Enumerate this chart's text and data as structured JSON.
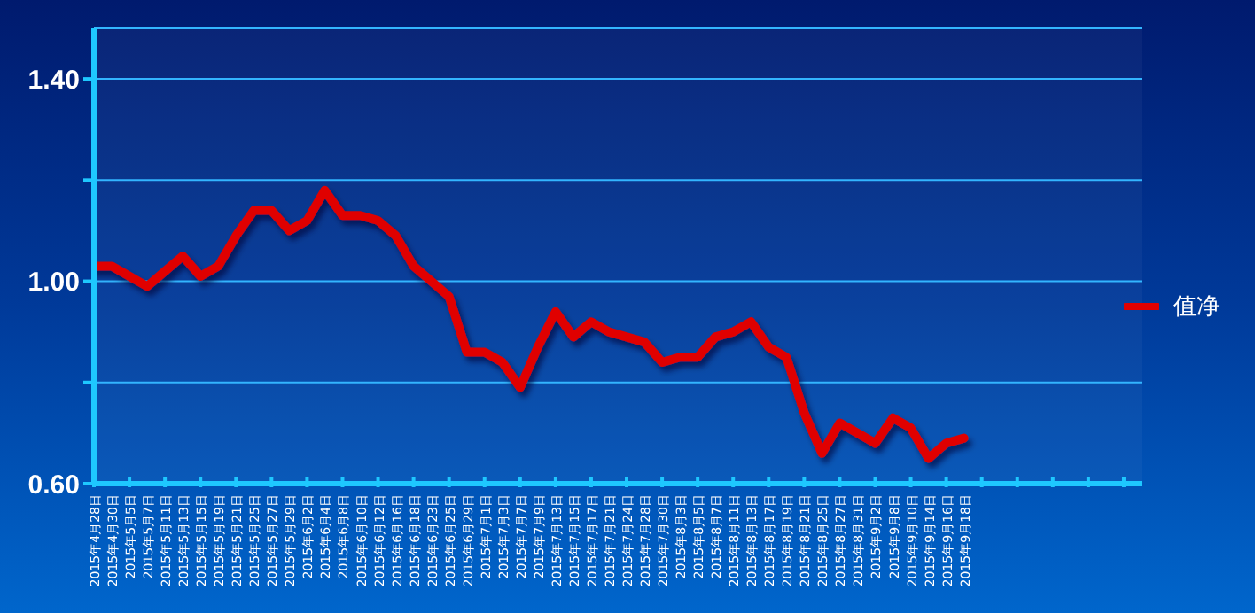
{
  "chart_data": {
    "type": "line",
    "categories": [
      "2015年4月28日",
      "2015年4月30日",
      "2015年5月5日",
      "2015年5月7日",
      "2015年5月11日",
      "2015年5月13日",
      "2015年5月15日",
      "2015年5月19日",
      "2015年5月21日",
      "2015年5月25日",
      "2015年5月27日",
      "2015年5月29日",
      "2015年6月2日",
      "2015年6月4日",
      "2015年6月8日",
      "2015年6月10日",
      "2015年6月12日",
      "2015年6月16日",
      "2015年6月18日",
      "2015年6月23日",
      "2015年6月25日",
      "2015年6月29日",
      "2015年7月1日",
      "2015年7月3日",
      "2015年7月7日",
      "2015年7月9日",
      "2015年7月13日",
      "2015年7月15日",
      "2015年7月17日",
      "2015年7月21日",
      "2015年7月24日",
      "2015年7月28日",
      "2015年7月30日",
      "2015年8月3日",
      "2015年8月5日",
      "2015年8月7日",
      "2015年8月11日",
      "2015年8月13日",
      "2015年8月17日",
      "2015年8月19日",
      "2015年8月21日",
      "2015年8月25日",
      "2015年8月27日",
      "2015年8月31日",
      "2015年9月2日",
      "2015年9月8日",
      "2015年9月10日",
      "2015年9月14日",
      "2015年9月16日",
      "2015年9月18日",
      null,
      null,
      null,
      null,
      null,
      null,
      null,
      null,
      null,
      null
    ],
    "series": [
      {
        "name": "值净",
        "color": "#e00000",
        "values": [
          1.03,
          1.03,
          1.01,
          0.99,
          1.02,
          1.05,
          1.01,
          1.03,
          1.09,
          1.14,
          1.14,
          1.1,
          1.12,
          1.18,
          1.13,
          1.13,
          1.12,
          1.09,
          1.03,
          1.0,
          0.97,
          0.86,
          0.86,
          0.84,
          0.79,
          0.87,
          0.94,
          0.89,
          0.92,
          0.9,
          0.89,
          0.88,
          0.84,
          0.85,
          0.85,
          0.89,
          0.9,
          0.92,
          0.87,
          0.85,
          0.74,
          0.66,
          0.72,
          0.7,
          0.68,
          0.73,
          0.71,
          0.65,
          0.68,
          0.69,
          null,
          null,
          null,
          null,
          null,
          null,
          null,
          null,
          null,
          null
        ]
      }
    ],
    "ylim": [
      0.6,
      1.5
    ],
    "yticks": [
      {
        "value": 0.6,
        "label": "0.60"
      },
      {
        "value": 0.8,
        "label": null
      },
      {
        "value": 1.0,
        "label": "1.00"
      },
      {
        "value": 1.2,
        "label": null
      },
      {
        "value": 1.4,
        "label": "1.40"
      }
    ],
    "grid": "y",
    "legend": "right",
    "marker": "none",
    "line_style": "solid"
  }
}
